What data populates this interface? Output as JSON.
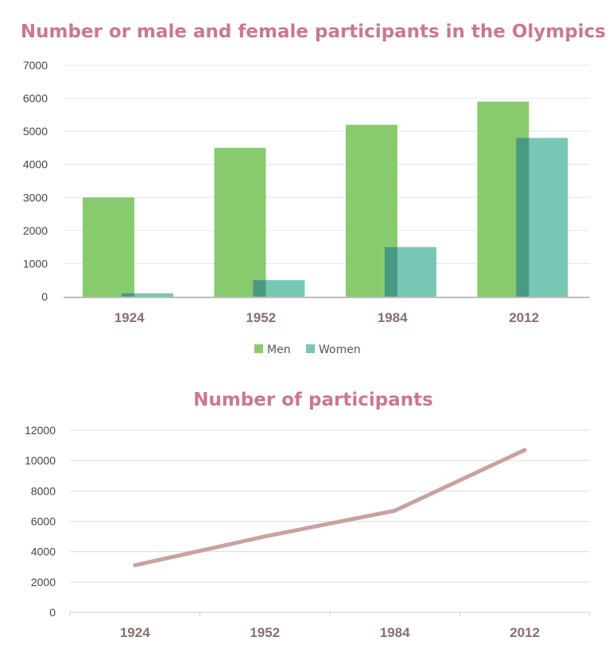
{
  "chart_data": [
    {
      "type": "bar",
      "title": "Number or male and female participants in the Olympics",
      "categories": [
        "1924",
        "1952",
        "1984",
        "2012"
      ],
      "series": [
        {
          "name": "Men",
          "values": [
            3000,
            4500,
            5200,
            5900
          ],
          "color": "#88cb6f"
        },
        {
          "name": "Women",
          "values": [
            100,
            500,
            1500,
            4800
          ],
          "color": "#78c6b4"
        }
      ],
      "overlap_color": "#4a9a82",
      "ylim": [
        0,
        7000
      ],
      "yticks": [
        0,
        1000,
        2000,
        3000,
        4000,
        5000,
        6000,
        7000
      ],
      "grid": true,
      "legend": "bottom",
      "title_color": "#c97890"
    },
    {
      "type": "line",
      "title": "Number of participants",
      "x": [
        "1924",
        "1952",
        "1984",
        "2012"
      ],
      "series": [
        {
          "values": [
            3100,
            5000,
            6700,
            10700
          ],
          "color": "#c9a1a1"
        }
      ],
      "ylim": [
        0,
        12000
      ],
      "yticks": [
        0,
        2000,
        4000,
        6000,
        8000,
        10000,
        12000
      ],
      "grid": true,
      "title_color": "#c97890"
    }
  ]
}
